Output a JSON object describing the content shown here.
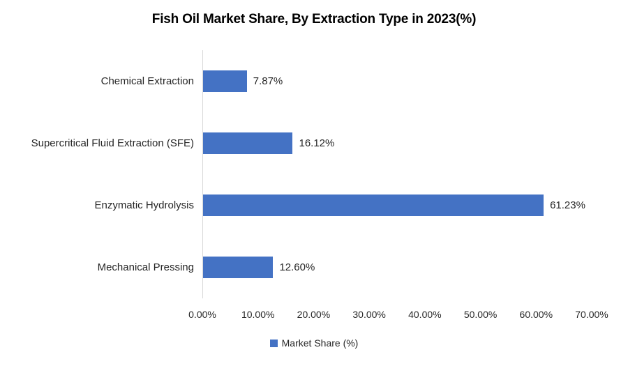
{
  "chart_data": {
    "type": "bar",
    "orientation": "horizontal",
    "title": "Fish Oil Market Share, By Extraction Type in 2023(%)",
    "categories": [
      "Chemical Extraction",
      "Supercritical Fluid Extraction (SFE)",
      "Enzymatic Hydrolysis",
      "Mechanical Pressing"
    ],
    "values": [
      7.87,
      16.12,
      61.23,
      12.6
    ],
    "data_labels": [
      "7.87%",
      "16.12%",
      "61.23%",
      "12.60%"
    ],
    "xlabel": "",
    "ylabel": "",
    "xlim": [
      0,
      70
    ],
    "x_tick_labels": [
      "0.00%",
      "10.00%",
      "20.00%",
      "30.00%",
      "40.00%",
      "50.00%",
      "60.00%",
      "70.00%"
    ],
    "grid": false,
    "legend": [
      "Market Share (%)"
    ],
    "legend_position": "bottom",
    "colors": {
      "bar": "#4472c4",
      "axis_line": "#d9d9d9",
      "text": "#262626",
      "title": "#000000",
      "background": "#ffffff"
    }
  }
}
